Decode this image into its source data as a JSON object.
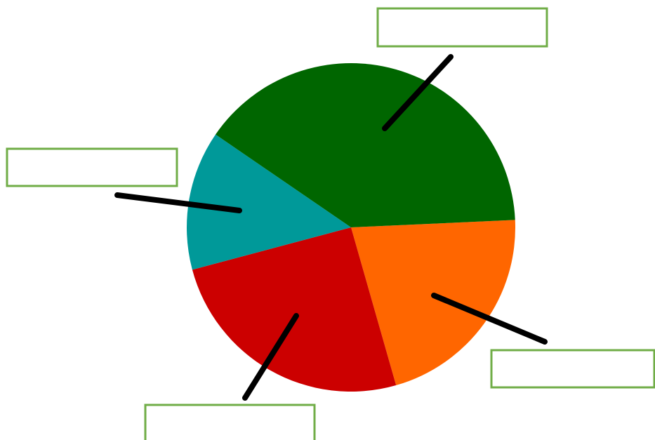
{
  "chart_data": {
    "type": "pie",
    "title": "",
    "start_angle_deg": -2.6,
    "direction": "clockwise",
    "slices": [
      {
        "label": "",
        "value": 29.5,
        "color": "#ff6600"
      },
      {
        "label": "",
        "value": 35.0,
        "color": "#cc0000"
      },
      {
        "label": "",
        "value": 19.0,
        "color": "#009999"
      },
      {
        "label": "",
        "value": 55.0,
        "color": "#006600"
      }
    ],
    "label_style": "empty callout boxes with leader lines",
    "callout_border_color": "#70ad47",
    "leader_color": "#000000"
  }
}
